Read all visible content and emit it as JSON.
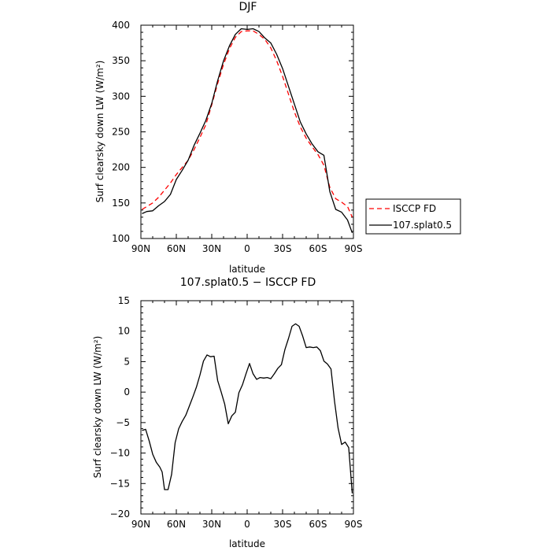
{
  "chart_data": [
    {
      "type": "line",
      "title": "DJF",
      "xlabel": "latitude",
      "ylabel": "Surf clearsky down LW (W/m²)",
      "xlim": [
        90,
        -90
      ],
      "ylim": [
        100,
        400
      ],
      "x_tick_values": [
        90,
        60,
        30,
        0,
        -30,
        -60,
        -90
      ],
      "x_tick_labels": [
        "90N",
        "60N",
        "30N",
        "0",
        "30S",
        "60S",
        "90S"
      ],
      "y_ticks": [
        100,
        150,
        200,
        250,
        300,
        350,
        400
      ],
      "legend_position": "right",
      "series": [
        {
          "name": "ISCCP FD",
          "color": "#ff0000",
          "dash": "dashed",
          "x": [
            89,
            85,
            80,
            75,
            70,
            65,
            60,
            55,
            50,
            45,
            40,
            35,
            30,
            25,
            20,
            15,
            10,
            5,
            0,
            -5,
            -10,
            -15,
            -20,
            -25,
            -30,
            -35,
            -40,
            -45,
            -50,
            -55,
            -60,
            -65,
            -70,
            -75,
            -80,
            -85,
            -89
          ],
          "y": [
            141,
            145,
            150,
            158,
            168,
            178,
            190,
            200,
            210,
            225,
            242,
            260,
            288,
            318,
            345,
            367,
            383,
            391,
            392,
            392,
            387,
            380,
            368,
            350,
            328,
            303,
            278,
            257,
            241,
            229,
            218,
            203,
            172,
            156,
            151,
            145,
            130
          ]
        },
        {
          "name": "107.splat0.5",
          "color": "#000000",
          "dash": "solid",
          "x": [
            89,
            85,
            80,
            75,
            70,
            65,
            60,
            55,
            50,
            45,
            40,
            35,
            30,
            25,
            20,
            15,
            10,
            5,
            0,
            -5,
            -10,
            -15,
            -20,
            -25,
            -30,
            -35,
            -40,
            -45,
            -50,
            -55,
            -60,
            -65,
            -70,
            -75,
            -80,
            -85,
            -89
          ],
          "y": [
            135,
            138,
            139,
            146,
            152,
            162,
            183,
            196,
            210,
            231,
            248,
            266,
            290,
            322,
            350,
            371,
            387,
            395,
            394,
            395,
            391,
            382,
            375,
            359,
            339,
            314,
            289,
            264,
            247,
            233,
            222,
            217,
            166,
            141,
            137,
            126,
            108
          ]
        }
      ]
    },
    {
      "type": "line",
      "title": "107.splat0.5 − ISCCP FD",
      "xlabel": "latitude",
      "ylabel": "Surf clearsky down LW (W/m²)",
      "xlim": [
        90,
        -90
      ],
      "ylim": [
        -20,
        15
      ],
      "x_tick_values": [
        90,
        60,
        30,
        0,
        -30,
        -60,
        -90
      ],
      "x_tick_labels": [
        "90N",
        "60N",
        "30N",
        "0",
        "30S",
        "60S",
        "90S"
      ],
      "y_ticks": [
        -20,
        -15,
        -10,
        -5,
        0,
        5,
        10,
        15
      ],
      "series": [
        {
          "color": "#000000",
          "dash": "solid",
          "x": [
            89,
            86,
            83,
            80,
            77,
            74,
            72,
            70,
            67,
            64,
            61,
            58,
            55,
            52,
            49,
            46,
            43,
            40,
            37,
            34,
            31,
            28,
            25,
            22,
            19,
            16,
            13,
            10,
            7,
            4,
            1,
            -2,
            -5,
            -8,
            -11,
            -14,
            -17,
            -20,
            -23,
            -26,
            -29,
            -32,
            -35,
            -38,
            -41,
            -44,
            -47,
            -50,
            -53,
            -56,
            -59,
            -62,
            -65,
            -68,
            -71,
            -74,
            -77,
            -80,
            -83,
            -86,
            -89
          ],
          "y": [
            -6.3,
            -6.1,
            -8.0,
            -10.2,
            -11.5,
            -12.3,
            -13.1,
            -16.0,
            -16.0,
            -13.5,
            -8.3,
            -6.0,
            -4.8,
            -3.8,
            -2.3,
            -0.8,
            0.8,
            2.8,
            5.1,
            6.1,
            5.8,
            5.9,
            1.9,
            0.0,
            -2.0,
            -5.2,
            -3.9,
            -3.3,
            -0.1,
            1.2,
            3.0,
            4.7,
            3.0,
            2.1,
            2.4,
            2.3,
            2.4,
            2.2,
            3.0,
            3.9,
            4.5,
            7.0,
            8.8,
            10.8,
            11.2,
            10.8,
            9.2,
            7.3,
            7.4,
            7.3,
            7.4,
            6.8,
            5.1,
            4.6,
            3.8,
            -1.5,
            -5.9,
            -8.6,
            -8.2,
            -9.1,
            -16.6
          ]
        }
      ]
    }
  ]
}
